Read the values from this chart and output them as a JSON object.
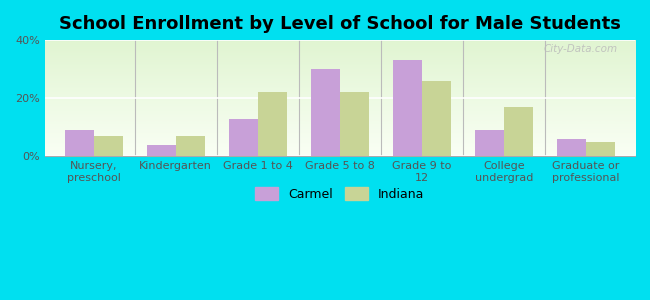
{
  "title": "School Enrollment by Level of School for Male Students",
  "categories": [
    "Nursery,\npreschool",
    "Kindergarten",
    "Grade 1 to 4",
    "Grade 5 to 8",
    "Grade 9 to\n12",
    "College\nundergrad",
    "Graduate or\nprofessional"
  ],
  "carmel_values": [
    9.0,
    4.0,
    13.0,
    30.0,
    33.0,
    9.0,
    6.0
  ],
  "indiana_values": [
    7.0,
    7.0,
    22.0,
    22.0,
    26.0,
    17.0,
    5.0
  ],
  "carmel_color": "#c8a0d8",
  "indiana_color": "#c8d496",
  "background_outer": "#00e0f0",
  "ylim": [
    0,
    40
  ],
  "yticks": [
    0,
    20,
    40
  ],
  "ytick_labels": [
    "0%",
    "20%",
    "40%"
  ],
  "title_fontsize": 13,
  "tick_fontsize": 8,
  "legend_labels": [
    "Carmel",
    "Indiana"
  ],
  "bar_width": 0.35,
  "watermark": "City-Data.com"
}
